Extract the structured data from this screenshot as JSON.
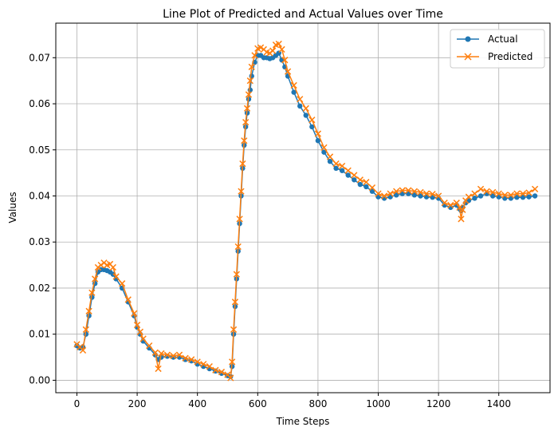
{
  "chart_data": {
    "type": "line",
    "title": "Line Plot of Predicted and Actual Values over Time",
    "xlabel": "Time Steps",
    "ylabel": "Values",
    "xlim": [
      -70,
      1570
    ],
    "ylim": [
      -0.0027,
      0.0775
    ],
    "xticks": [
      0,
      200,
      400,
      600,
      800,
      1000,
      1200,
      1400
    ],
    "xtick_labels": [
      "0",
      "200",
      "400",
      "600",
      "800",
      "1000",
      "1200",
      "1400"
    ],
    "yticks": [
      0.0,
      0.01,
      0.02,
      0.03,
      0.04,
      0.05,
      0.06,
      0.07
    ],
    "ytick_labels": [
      "0.00",
      "0.01",
      "0.02",
      "0.03",
      "0.04",
      "0.05",
      "0.06",
      "0.07"
    ],
    "grid": true,
    "legend_position": "top-right",
    "series": [
      {
        "name": "Actual",
        "color": "#1f77b4",
        "marker": "circle",
        "x": [
          0,
          10,
          20,
          30,
          40,
          50,
          60,
          70,
          80,
          90,
          100,
          110,
          120,
          130,
          150,
          170,
          190,
          200,
          210,
          220,
          240,
          260,
          270,
          280,
          300,
          320,
          340,
          360,
          380,
          400,
          420,
          440,
          460,
          480,
          500,
          510,
          515,
          520,
          525,
          530,
          535,
          540,
          545,
          550,
          555,
          560,
          565,
          570,
          575,
          580,
          590,
          600,
          610,
          620,
          630,
          640,
          650,
          660,
          670,
          680,
          690,
          700,
          720,
          740,
          760,
          780,
          800,
          820,
          840,
          860,
          880,
          900,
          920,
          940,
          960,
          980,
          1000,
          1020,
          1040,
          1060,
          1080,
          1100,
          1120,
          1140,
          1160,
          1180,
          1200,
          1220,
          1240,
          1260,
          1270,
          1275,
          1280,
          1290,
          1300,
          1320,
          1340,
          1360,
          1380,
          1400,
          1420,
          1440,
          1460,
          1480,
          1500,
          1520
        ],
        "y": [
          0.0075,
          0.007,
          0.0072,
          0.01,
          0.014,
          0.018,
          0.021,
          0.0235,
          0.024,
          0.024,
          0.0238,
          0.0235,
          0.023,
          0.022,
          0.02,
          0.017,
          0.014,
          0.0115,
          0.01,
          0.0085,
          0.007,
          0.0055,
          0.0045,
          0.005,
          0.0052,
          0.005,
          0.005,
          0.0045,
          0.0042,
          0.0035,
          0.003,
          0.0025,
          0.002,
          0.0015,
          0.001,
          0.0008,
          0.003,
          0.01,
          0.016,
          0.022,
          0.028,
          0.034,
          0.04,
          0.046,
          0.051,
          0.055,
          0.058,
          0.061,
          0.063,
          0.066,
          0.069,
          0.0705,
          0.0705,
          0.07,
          0.07,
          0.0698,
          0.07,
          0.0705,
          0.071,
          0.0695,
          0.068,
          0.066,
          0.0625,
          0.0595,
          0.0575,
          0.055,
          0.052,
          0.0495,
          0.0475,
          0.046,
          0.0455,
          0.0445,
          0.0435,
          0.0425,
          0.042,
          0.041,
          0.0398,
          0.0395,
          0.0398,
          0.0402,
          0.0405,
          0.0405,
          0.0402,
          0.04,
          0.0398,
          0.0397,
          0.0395,
          0.038,
          0.0375,
          0.038,
          0.0372,
          0.0368,
          0.0375,
          0.0385,
          0.039,
          0.0395,
          0.04,
          0.0405,
          0.04,
          0.0398,
          0.0395,
          0.0395,
          0.0397,
          0.0397,
          0.0398,
          0.04
        ]
      },
      {
        "name": "Predicted",
        "color": "#ff7f0e",
        "marker": "x",
        "x": [
          0,
          10,
          20,
          30,
          40,
          50,
          60,
          70,
          80,
          90,
          100,
          110,
          120,
          130,
          150,
          170,
          190,
          200,
          210,
          220,
          240,
          260,
          270,
          280,
          300,
          320,
          340,
          360,
          380,
          400,
          420,
          440,
          460,
          480,
          500,
          510,
          515,
          520,
          525,
          530,
          535,
          540,
          545,
          550,
          555,
          560,
          565,
          570,
          575,
          580,
          590,
          600,
          610,
          620,
          630,
          640,
          650,
          660,
          670,
          680,
          690,
          700,
          720,
          740,
          760,
          780,
          800,
          820,
          840,
          860,
          880,
          900,
          920,
          940,
          960,
          980,
          1000,
          1020,
          1040,
          1060,
          1080,
          1100,
          1120,
          1140,
          1160,
          1180,
          1200,
          1220,
          1240,
          1260,
          1270,
          1275,
          1280,
          1290,
          1300,
          1320,
          1340,
          1360,
          1380,
          1400,
          1420,
          1440,
          1460,
          1480,
          1500,
          1520
        ],
        "y": [
          0.0078,
          0.0072,
          0.0065,
          0.011,
          0.015,
          0.019,
          0.022,
          0.0245,
          0.025,
          0.0255,
          0.025,
          0.0252,
          0.0245,
          0.0225,
          0.021,
          0.0175,
          0.0145,
          0.012,
          0.0105,
          0.009,
          0.0075,
          0.006,
          0.0025,
          0.0058,
          0.0055,
          0.0053,
          0.0055,
          0.0048,
          0.0045,
          0.004,
          0.0035,
          0.003,
          0.0022,
          0.0018,
          0.0012,
          0.0005,
          0.004,
          0.011,
          0.017,
          0.023,
          0.029,
          0.035,
          0.041,
          0.047,
          0.052,
          0.056,
          0.059,
          0.062,
          0.065,
          0.068,
          0.0705,
          0.072,
          0.0722,
          0.0718,
          0.0712,
          0.071,
          0.0715,
          0.0728,
          0.073,
          0.0718,
          0.0695,
          0.067,
          0.064,
          0.061,
          0.059,
          0.0565,
          0.0535,
          0.0505,
          0.0485,
          0.047,
          0.0465,
          0.0455,
          0.0445,
          0.0435,
          0.043,
          0.0418,
          0.0405,
          0.04,
          0.0405,
          0.041,
          0.0412,
          0.0412,
          0.041,
          0.0408,
          0.0405,
          0.0404,
          0.04,
          0.0385,
          0.038,
          0.0385,
          0.0375,
          0.035,
          0.037,
          0.039,
          0.0398,
          0.0405,
          0.0415,
          0.041,
          0.0408,
          0.0405,
          0.0402,
          0.0402,
          0.0405,
          0.0405,
          0.0407,
          0.0415
        ]
      }
    ]
  }
}
